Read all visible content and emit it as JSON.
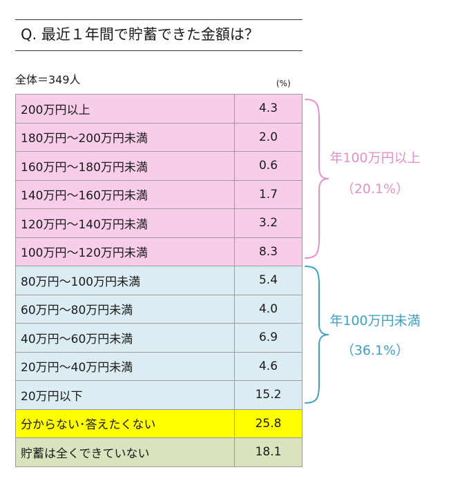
{
  "question": "Q.  最近１年間で貯蓄できた金額は？",
  "sample_label": "全体＝349人",
  "unit": "(%)",
  "colors": {
    "pink": "#f7cde9",
    "blue": "#dcecf3",
    "yellow": "#ffff00",
    "green": "#d9e4bf",
    "pink_text": "#e58fc8",
    "blue_text": "#3e9fc4"
  },
  "chart_data": {
    "type": "table",
    "rows": [
      {
        "label": "200万円以上",
        "value": "4.3",
        "color": "#f7cde9"
      },
      {
        "label": "180万円～200万円未満",
        "value": "2.0",
        "color": "#f7cde9"
      },
      {
        "label": "160万円～180万円未満",
        "value": "0.6",
        "color": "#f7cde9"
      },
      {
        "label": "140万円～160万円未満",
        "value": "1.7",
        "color": "#f7cde9"
      },
      {
        "label": "120万円～140万円未満",
        "value": "3.2",
        "color": "#f7cde9"
      },
      {
        "label": "100万円～120万円未満",
        "value": "8.3",
        "color": "#f7cde9"
      },
      {
        "label": "80万円～100万円未満",
        "value": "5.4",
        "color": "#dcecf3"
      },
      {
        "label": "60万円～80万円未満",
        "value": "4.0",
        "color": "#dcecf3"
      },
      {
        "label": "40万円～60万円未満",
        "value": "6.9",
        "color": "#dcecf3"
      },
      {
        "label": "20万円～40万円未満",
        "value": "4.6",
        "color": "#dcecf3"
      },
      {
        "label": "20万円以下",
        "value": "15.2",
        "color": "#dcecf3"
      },
      {
        "label": "分からない･答えたくない",
        "value": "25.8",
        "color": "#ffff00"
      },
      {
        "label": "貯蓄は全くできていない",
        "value": "18.1",
        "color": "#d9e4bf"
      }
    ],
    "groups": [
      {
        "label": "年100万円以上",
        "pct": "（20.1%）",
        "color": "#e58fc8"
      },
      {
        "label": "年100万円未満",
        "pct": "（36.1%）",
        "color": "#3e9fc4"
      }
    ]
  }
}
